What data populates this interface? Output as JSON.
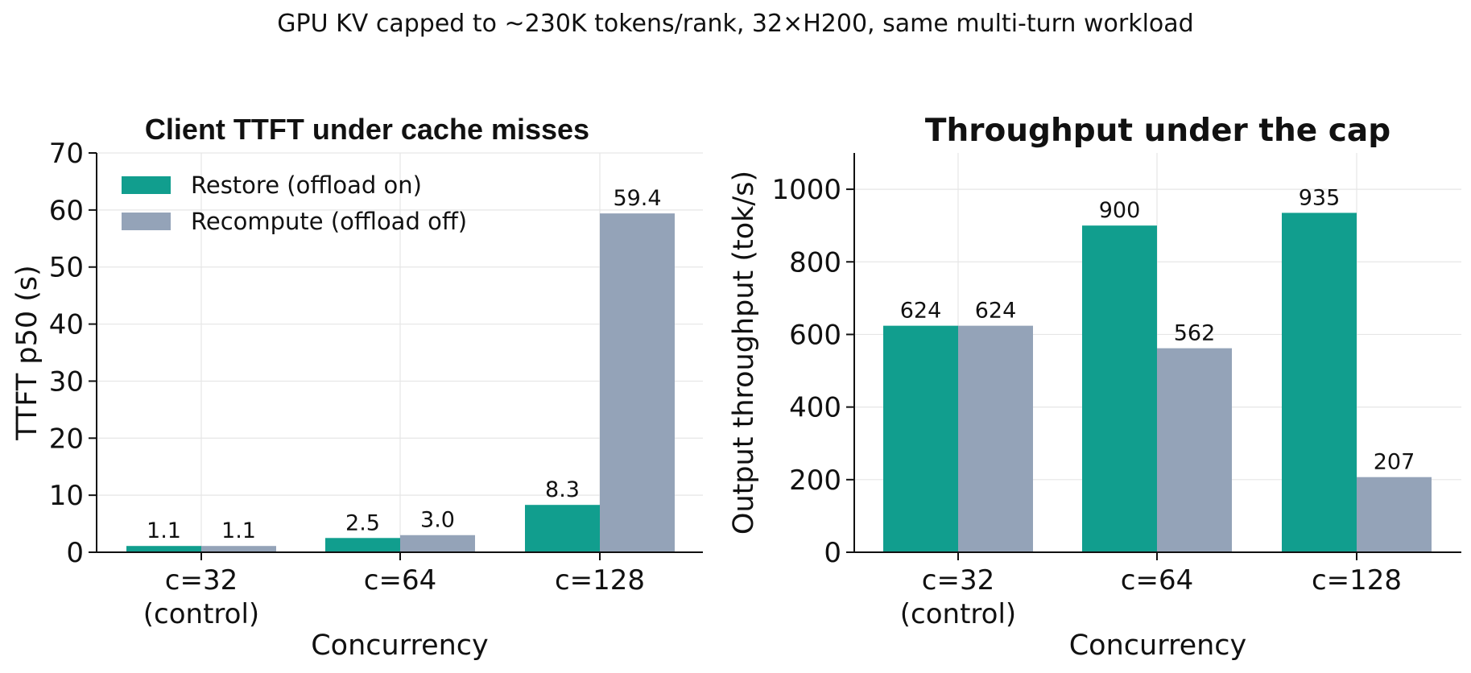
{
  "figure": {
    "suptitle": "GPU KV capped to ~230K tokens/rank, 32×H200, same multi-turn workload"
  },
  "colors": {
    "restore": "#119e8e",
    "recompute": "#94a3b8",
    "grid": "#e6e6e6",
    "axis": "#111111"
  },
  "chart_data": [
    {
      "type": "bar",
      "title": "Client TTFT under cache misses",
      "xlabel": "Concurrency",
      "ylabel": "TTFT p50 (s)",
      "categories": [
        "c=32\n(control)",
        "c=64",
        "c=128"
      ],
      "ylim": [
        0,
        70
      ],
      "yticks": [
        0,
        10,
        20,
        30,
        40,
        50,
        60,
        70
      ],
      "ytick_labels": [
        "0",
        "10",
        "20",
        "30",
        "40",
        "50",
        "60",
        "70"
      ],
      "grid": true,
      "legend": "upper-left",
      "series": [
        {
          "name": "Restore (offload on)",
          "values": [
            1.1,
            2.5,
            8.3
          ],
          "labels": [
            "1.1",
            "2.5",
            "8.3"
          ]
        },
        {
          "name": "Recompute (offload off)",
          "values": [
            1.1,
            3.0,
            59.4
          ],
          "labels": [
            "1.1",
            "3.0",
            "59.4"
          ]
        }
      ]
    },
    {
      "type": "bar",
      "title": "Throughput under the cap",
      "xlabel": "Concurrency",
      "ylabel": "Output throughput (tok/s)",
      "categories": [
        "c=32\n(control)",
        "c=64",
        "c=128"
      ],
      "ylim": [
        0,
        1100
      ],
      "yticks": [
        0,
        200,
        400,
        600,
        800,
        1000
      ],
      "ytick_labels": [
        "0",
        "200",
        "400",
        "600",
        "800",
        "1000"
      ],
      "grid": true,
      "series": [
        {
          "name": "Restore (offload on)",
          "values": [
            624,
            900,
            935
          ],
          "labels": [
            "624",
            "900",
            "935"
          ]
        },
        {
          "name": "Recompute (offload off)",
          "values": [
            624,
            562,
            207
          ],
          "labels": [
            "624",
            "562",
            "207"
          ]
        }
      ]
    }
  ]
}
